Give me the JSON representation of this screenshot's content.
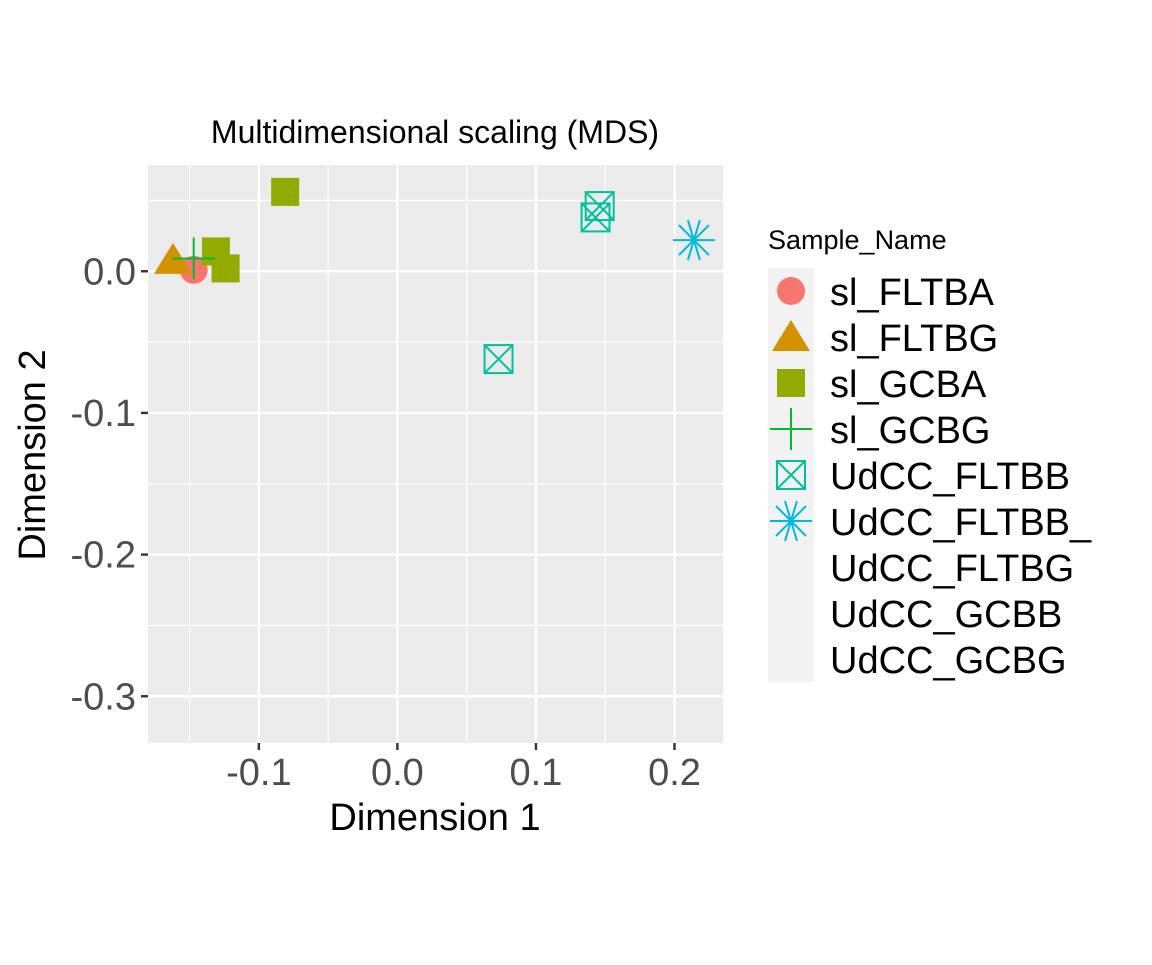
{
  "chart_data": {
    "type": "scatter",
    "title": "Multidimensional scaling (MDS)",
    "xlabel": "Dimension 1",
    "ylabel": "Dimension 2",
    "xlim": [
      -0.18,
      0.235
    ],
    "ylim": [
      -0.333,
      0.075
    ],
    "x_ticks": [
      -0.1,
      0.0,
      0.1,
      0.2
    ],
    "x_tick_labels": [
      "-0.1",
      "0.0",
      "0.1",
      "0.2"
    ],
    "y_ticks": [
      0.0,
      -0.1,
      -0.2,
      -0.3
    ],
    "y_tick_labels": [
      "0.0",
      "-0.1",
      "-0.2",
      "-0.3"
    ],
    "grid": true,
    "panel_background": "#EBEBEB",
    "legend": {
      "title": "Sample_Name",
      "position": "right",
      "entries": [
        {
          "label": "sl_FLTBA",
          "shape": "circle",
          "color": "#F8766D"
        },
        {
          "label": "sl_FLTBG",
          "shape": "triangle",
          "color": "#D39200"
        },
        {
          "label": "sl_GCBA",
          "shape": "square",
          "color": "#93AA00"
        },
        {
          "label": "sl_GCBG",
          "shape": "plus",
          "color": "#00BA38"
        },
        {
          "label": "UdCC_FLTBB",
          "shape": "square-cross",
          "color": "#00C19F"
        },
        {
          "label": "UdCC_FLTBB_",
          "shape": "asterisk",
          "color": "#00B9E3"
        },
        {
          "label": "UdCC_FLTBG",
          "shape": "none",
          "color": "#619CFF"
        },
        {
          "label": "UdCC_GCBB",
          "shape": "none",
          "color": "#DB72FB"
        },
        {
          "label": "UdCC_GCBG",
          "shape": "none",
          "color": "#FF61C3"
        }
      ]
    },
    "series": [
      {
        "name": "sl_FLTBA",
        "shape": "circle",
        "color": "#F8766D",
        "points": [
          {
            "x": -0.147,
            "y": 0.001
          }
        ]
      },
      {
        "name": "sl_FLTBG",
        "shape": "triangle",
        "color": "#D39200",
        "points": [
          {
            "x": -0.162,
            "y": 0.008
          }
        ]
      },
      {
        "name": "sl_GCBA",
        "shape": "square",
        "color": "#93AA00",
        "points": [
          {
            "x": -0.081,
            "y": 0.056
          },
          {
            "x": -0.131,
            "y": 0.014
          },
          {
            "x": -0.124,
            "y": 0.002
          }
        ]
      },
      {
        "name": "sl_GCBG",
        "shape": "plus",
        "color": "#00BA38",
        "points": [
          {
            "x": -0.147,
            "y": 0.009
          }
        ]
      },
      {
        "name": "UdCC_FLTBB",
        "shape": "square-cross",
        "color": "#00C19F",
        "points": [
          {
            "x": 0.146,
            "y": 0.046
          },
          {
            "x": 0.143,
            "y": 0.038
          },
          {
            "x": 0.073,
            "y": -0.062
          }
        ]
      },
      {
        "name": "UdCC_FLTBB_",
        "shape": "asterisk",
        "color": "#00B9E3",
        "points": [
          {
            "x": 0.214,
            "y": 0.022
          }
        ]
      }
    ]
  }
}
